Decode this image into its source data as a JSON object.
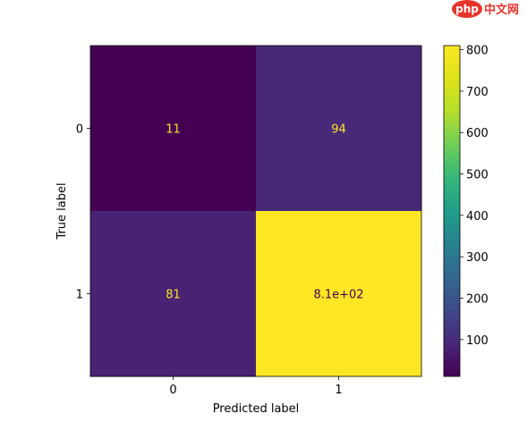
{
  "watermark": {
    "logo_text": "php",
    "site_text": "中文网",
    "logo_color": "#e8332a",
    "text_color": "#e8332a"
  },
  "chart_data": {
    "type": "heatmap",
    "xlabel": "Predicted label",
    "ylabel": "True label",
    "x_categories": [
      "0",
      "1"
    ],
    "y_categories": [
      "0",
      "1"
    ],
    "values": [
      [
        11,
        94
      ],
      [
        81,
        810
      ]
    ],
    "cell_labels": [
      [
        "11",
        "94"
      ],
      [
        "81",
        "8.1e+02"
      ]
    ],
    "colormap": "viridis",
    "colorbar": {
      "range": [
        11,
        810
      ],
      "ticks": [
        100,
        200,
        300,
        400,
        500,
        600,
        700,
        800
      ],
      "tick_labels": [
        "100",
        "200",
        "300",
        "400",
        "500",
        "600",
        "700",
        "800"
      ]
    },
    "text_colors": {
      "dark_cell": "#fde725",
      "light_cell": "#440154"
    }
  }
}
